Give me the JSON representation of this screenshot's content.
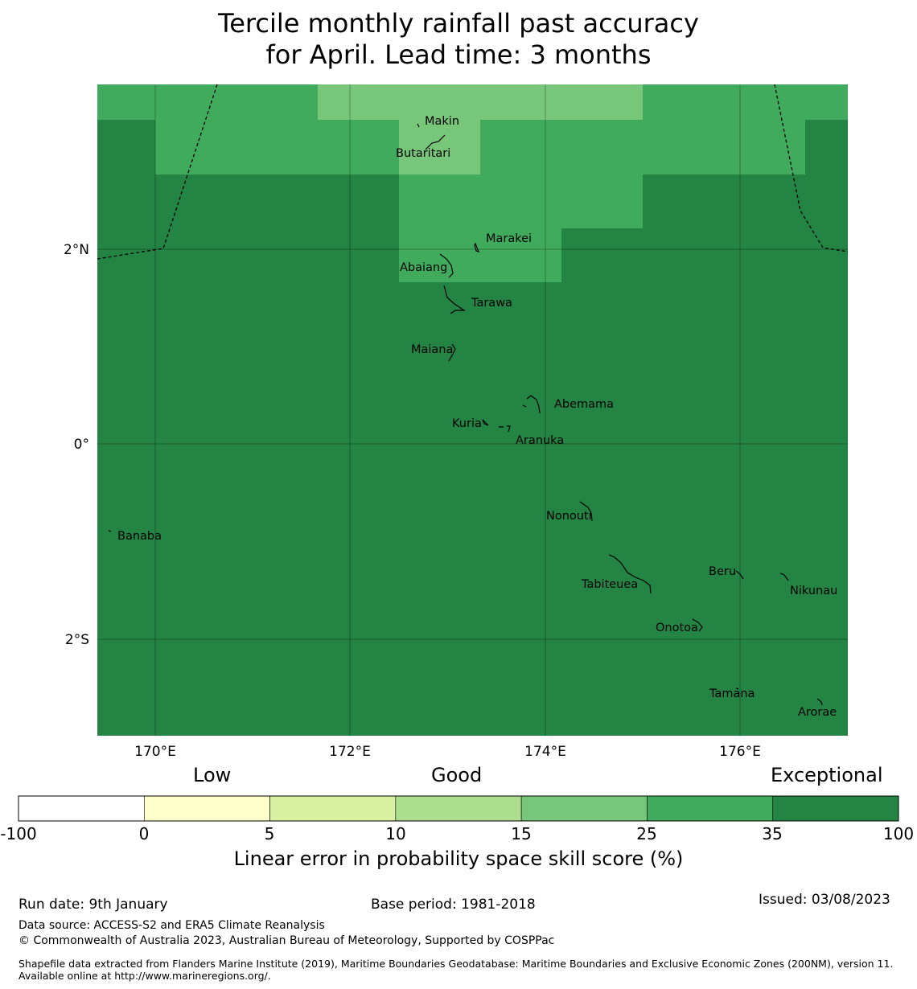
{
  "title_line1": "Tercile monthly rainfall past accuracy",
  "title_line2": "for April. Lead time: 3 months",
  "axes": {
    "x_ticks": [
      "170°E",
      "172°E",
      "174°E",
      "176°E"
    ],
    "y_ticks": [
      "2°N",
      "0°",
      "2°S"
    ]
  },
  "islands": [
    {
      "name": "Makin"
    },
    {
      "name": "Butaritari"
    },
    {
      "name": "Marakei"
    },
    {
      "name": "Abaiang"
    },
    {
      "name": "Tarawa"
    },
    {
      "name": "Maiana"
    },
    {
      "name": "Abemama"
    },
    {
      "name": "Kuria"
    },
    {
      "name": "Aranuka"
    },
    {
      "name": "Banaba"
    },
    {
      "name": "Nonouti"
    },
    {
      "name": "Beru"
    },
    {
      "name": "Tabiteuea"
    },
    {
      "name": "Nikunau"
    },
    {
      "name": "Onotoa"
    },
    {
      "name": "Tamana"
    },
    {
      "name": "Arorae"
    }
  ],
  "colorbar": {
    "header_low": "Low",
    "header_good": "Good",
    "header_exceptional": "Exceptional",
    "ticks": [
      "-100",
      "0",
      "5",
      "10",
      "15",
      "25",
      "35",
      "100"
    ],
    "colors": [
      "#ffffff",
      "#ffffcc",
      "#d9f0a3",
      "#addd8e",
      "#78c679",
      "#41ab5d",
      "#238443"
    ],
    "label": "Linear error in probability space skill score (%)"
  },
  "footer": {
    "run_date": "Run date: 9th January",
    "base_period": "Base period: 1981-2018",
    "issued": "Issued: 03/08/2023",
    "data_source": "Data source: ACCESS-S2 and ERA5 Climate Reanalysis",
    "copyright": "© Commonwealth of Australia 2023, Australian Bureau of Meteorology, Supported by COSPPac",
    "shapefile": "Shapefile data extracted from Flanders Marine Institute (2019), Maritime Boundaries Geodatabase: Maritime Boundaries and Exclusive Economic Zones (200NM), version 11. Available online at http://www.marineregions.org/."
  },
  "colors": {
    "exceptional": "#238443",
    "very_good": "#41ab5d",
    "good": "#78c679"
  }
}
